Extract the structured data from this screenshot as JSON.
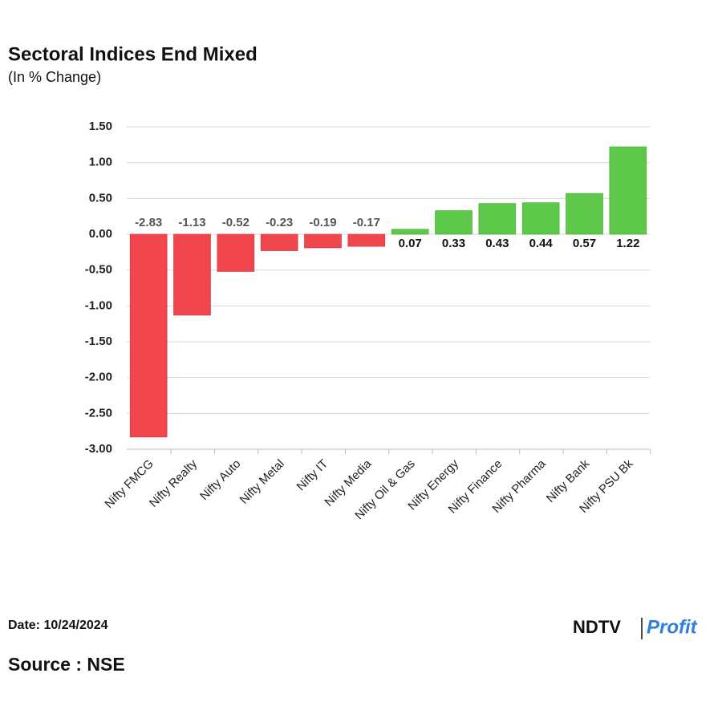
{
  "chart_data": {
    "type": "bar",
    "title": "Sectoral Indices End Mixed",
    "subtitle": "(In % Change)",
    "categories": [
      "Nifty FMCG",
      "Nifty Realty",
      "Nifty Auto",
      "Nifty Metal",
      "Nifty IT",
      "Nifty Media",
      "Nifty Oil & Gas",
      "Nifty Energy",
      "Nifty Finance",
      "Nifty Pharma",
      "Nifty Bank",
      "Nifty PSU Bk"
    ],
    "values": [
      -2.83,
      -1.13,
      -0.52,
      -0.23,
      -0.19,
      -0.17,
      0.07,
      0.33,
      0.43,
      0.44,
      0.57,
      1.22
    ],
    "colors": {
      "negative": "#f2464e",
      "positive": "#5dc84a"
    },
    "ylim": [
      -3,
      1.5
    ],
    "yticks": [
      {
        "value": -3,
        "label": "-3.00"
      },
      {
        "value": -2.5,
        "label": "-2.50"
      },
      {
        "value": -2,
        "label": "-2.00"
      },
      {
        "value": -1.5,
        "label": "-1.50"
      },
      {
        "value": -1,
        "label": "-1.00"
      },
      {
        "value": -0.5,
        "label": "-0.50"
      },
      {
        "value": 0,
        "label": "0.00"
      },
      {
        "value": 0.5,
        "label": "0.50"
      },
      {
        "value": 1,
        "label": "1.00"
      },
      {
        "value": 1.5,
        "label": "1.50"
      }
    ],
    "grid": true
  },
  "footer": {
    "date": "Date: 10/24/2024",
    "source": "Source : NSE",
    "logo": {
      "brand": "NDTV",
      "product": "Profit"
    }
  }
}
